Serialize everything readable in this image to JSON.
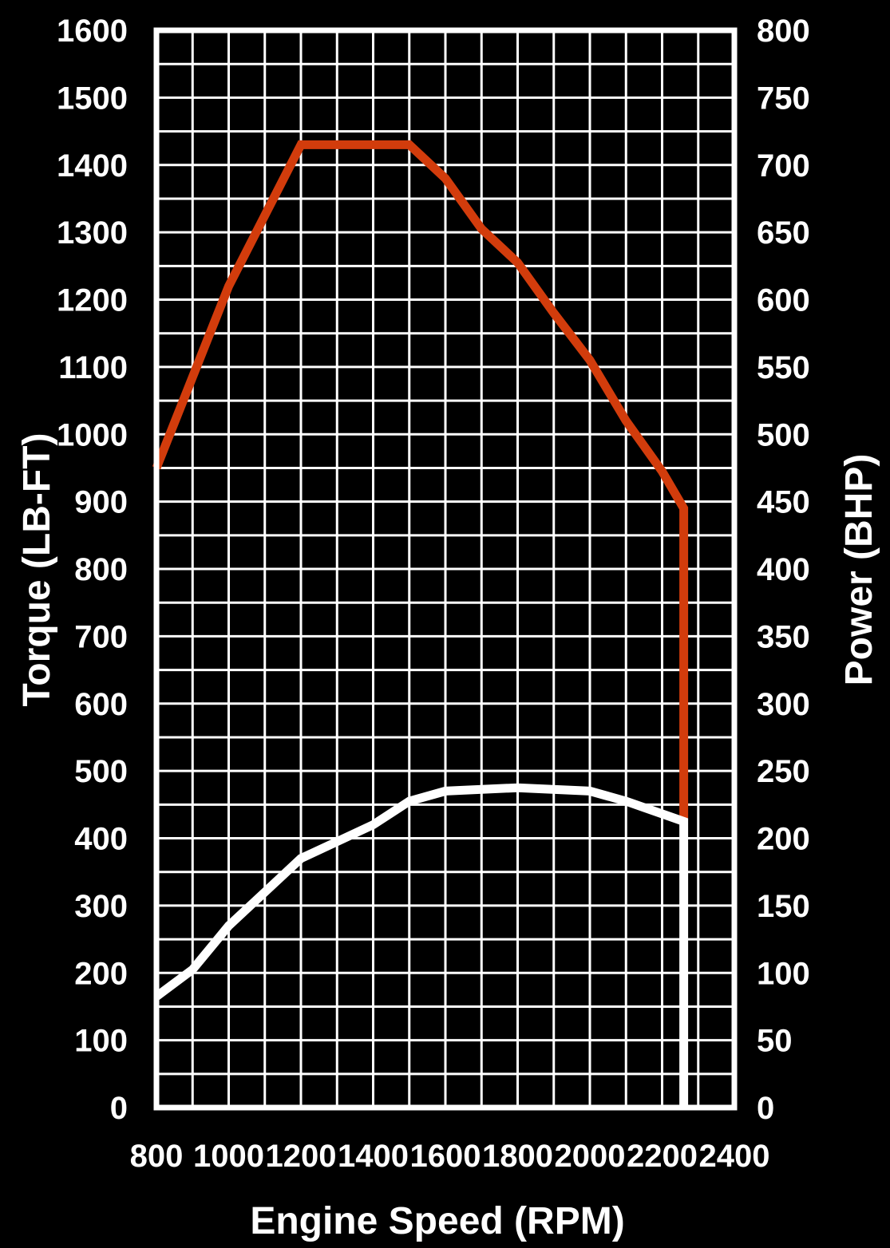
{
  "chart_data": {
    "type": "line",
    "title": "",
    "xlabel": "Engine Speed (RPM)",
    "ylabel_left": "Torque (LB-FT)",
    "ylabel_right": "Power (BHP)",
    "x_ticks": [
      800,
      1000,
      1200,
      1400,
      1600,
      1800,
      2000,
      2200,
      2400
    ],
    "left_ticks": [
      0,
      100,
      200,
      300,
      400,
      500,
      600,
      700,
      800,
      900,
      1000,
      1100,
      1200,
      1300,
      1400,
      1500,
      1600
    ],
    "right_ticks": [
      0,
      50,
      100,
      150,
      200,
      250,
      300,
      350,
      400,
      450,
      500,
      550,
      600,
      650,
      700,
      750,
      800
    ],
    "xlim": [
      800,
      2400
    ],
    "ylim_left": [
      0,
      1600
    ],
    "ylim_right": [
      0,
      800
    ],
    "grid": true,
    "background_color": "#000000",
    "grid_color": "#ffffff",
    "series": [
      {
        "axis": "left",
        "color": "#d23c0c",
        "points": [
          {
            "x": 800,
            "y": 950
          },
          {
            "x": 1000,
            "y": 1220
          },
          {
            "x": 1200,
            "y": 1430
          },
          {
            "x": 1500,
            "y": 1430
          },
          {
            "x": 1600,
            "y": 1380
          },
          {
            "x": 1700,
            "y": 1305
          },
          {
            "x": 1800,
            "y": 1255
          },
          {
            "x": 1900,
            "y": 1180
          },
          {
            "x": 2000,
            "y": 1110
          },
          {
            "x": 2100,
            "y": 1020
          },
          {
            "x": 2200,
            "y": 945
          },
          {
            "x": 2260,
            "y": 890
          },
          {
            "x": 2260,
            "y": 430
          }
        ]
      },
      {
        "axis": "left",
        "color": "#ffffff",
        "points": [
          {
            "x": 800,
            "y": 165
          },
          {
            "x": 900,
            "y": 205
          },
          {
            "x": 1000,
            "y": 270
          },
          {
            "x": 1100,
            "y": 320
          },
          {
            "x": 1200,
            "y": 370
          },
          {
            "x": 1300,
            "y": 395
          },
          {
            "x": 1400,
            "y": 420
          },
          {
            "x": 1500,
            "y": 455
          },
          {
            "x": 1600,
            "y": 470
          },
          {
            "x": 1800,
            "y": 475
          },
          {
            "x": 2000,
            "y": 470
          },
          {
            "x": 2100,
            "y": 455
          },
          {
            "x": 2260,
            "y": 425
          },
          {
            "x": 2260,
            "y": 0
          }
        ]
      }
    ]
  }
}
